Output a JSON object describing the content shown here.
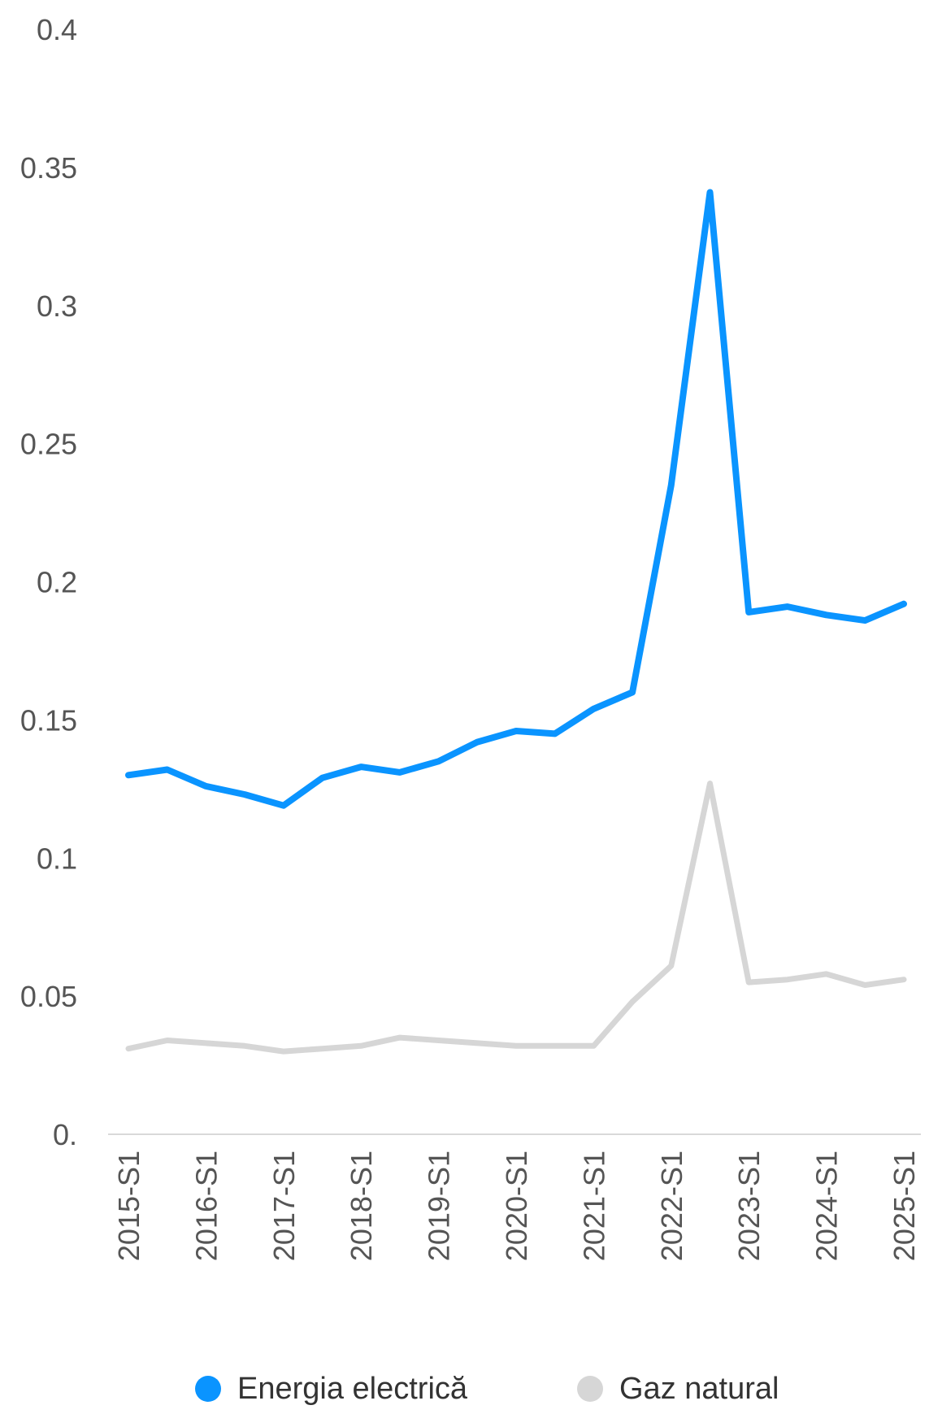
{
  "chart_data": {
    "type": "line",
    "title": "",
    "xlabel": "",
    "ylabel": "",
    "ylim": [
      0,
      0.4
    ],
    "y_ticks": [
      "0.",
      "0.05",
      "0.1",
      "0.15",
      "0.2",
      "0.25",
      "0.3",
      "0.35",
      "0.4"
    ],
    "x": [
      "2015-S1",
      "2015-S2",
      "2016-S1",
      "2016-S2",
      "2017-S1",
      "2017-S2",
      "2018-S1",
      "2018-S2",
      "2019-S1",
      "2019-S2",
      "2020-S1",
      "2020-S2",
      "2021-S1",
      "2021-S2",
      "2022-S1",
      "2022-S2",
      "2023-S1",
      "2023-S2",
      "2024-S1",
      "2024-S2",
      "2025-S1"
    ],
    "x_tick_labels": [
      "2015-S1",
      "2016-S1",
      "2017-S1",
      "2018-S1",
      "2019-S1",
      "2020-S1",
      "2021-S1",
      "2022-S1",
      "2023-S1",
      "2024-S1",
      "2025-S1"
    ],
    "grid": false,
    "legend_position": "bottom",
    "series": [
      {
        "name": "Energia electrică",
        "color": "#0a94ff",
        "values": [
          0.13,
          0.132,
          0.126,
          0.123,
          0.119,
          0.129,
          0.133,
          0.131,
          0.135,
          0.142,
          0.146,
          0.145,
          0.154,
          0.16,
          0.235,
          0.341,
          0.189,
          0.191,
          0.188,
          0.186,
          0.192
        ]
      },
      {
        "name": "Gaz natural",
        "color": "#d6d6d6",
        "values": [
          0.031,
          0.034,
          0.033,
          0.032,
          0.03,
          0.031,
          0.032,
          0.035,
          0.034,
          0.033,
          0.032,
          0.032,
          0.032,
          0.048,
          0.061,
          0.127,
          0.055,
          0.056,
          0.058,
          0.054,
          0.056
        ]
      }
    ]
  }
}
